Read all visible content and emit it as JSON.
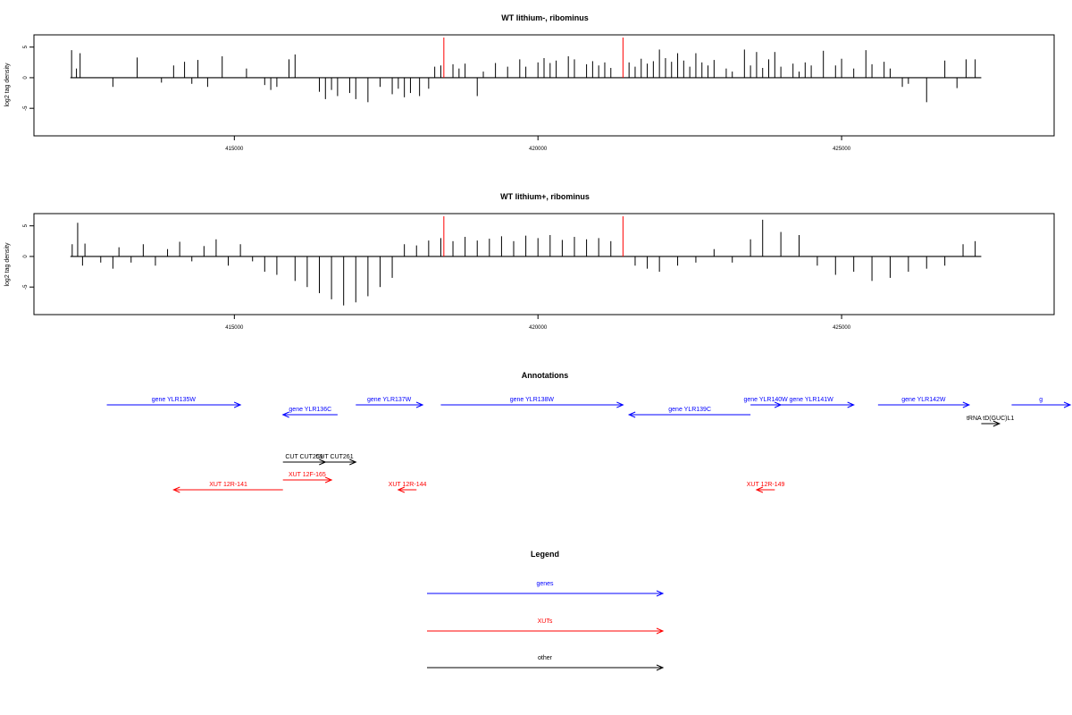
{
  "panels": [
    {
      "title": "WT lithium-, ribominus",
      "ylabel": "log2 tag density"
    },
    {
      "title": "WT lithium+, ribominus",
      "ylabel": "log2 tag density"
    }
  ],
  "annotations_title": "Annotations",
  "legend": {
    "title": "Legend",
    "items": [
      {
        "label": "genes",
        "color": "#0000ff"
      },
      {
        "label": "XUTs",
        "color": "#ff0000"
      },
      {
        "label": "other",
        "color": "#000000"
      }
    ]
  },
  "colors": {
    "gene": "#0000ff",
    "xut": "#ff0000",
    "other": "#000000",
    "marker": "#ff0000",
    "bars": "#000000"
  },
  "chart_data": [
    {
      "type": "bar",
      "title": "WT lithium-, ribominus",
      "xlabel": "",
      "ylabel": "log2 tag density",
      "xlim": [
        411700,
        428500
      ],
      "ylim": [
        -9.5,
        7
      ],
      "xticks": [
        415000,
        420000,
        425000
      ],
      "yticks": [
        -5,
        0,
        5
      ],
      "data_range": [
        412300,
        427300
      ],
      "markers": [
        418450,
        421400
      ],
      "series": [
        {
          "values": [
            [
              412320,
              4.5
            ],
            [
              412400,
              1.5
            ],
            [
              412460,
              4.0
            ],
            [
              413000,
              -1.5
            ],
            [
              413400,
              3.3
            ],
            [
              413800,
              -0.8
            ],
            [
              414000,
              2.0
            ],
            [
              414180,
              2.6
            ],
            [
              414300,
              -1.0
            ],
            [
              414400,
              2.9
            ],
            [
              414560,
              -1.5
            ],
            [
              414800,
              3.5
            ],
            [
              415200,
              1.5
            ],
            [
              415500,
              -1.2
            ],
            [
              415600,
              -2.0
            ],
            [
              415700,
              -1.5
            ],
            [
              416000,
              3.8
            ],
            [
              415900,
              3.0
            ],
            [
              416400,
              -2.3
            ],
            [
              416500,
              -3.5
            ],
            [
              416600,
              -2.0
            ],
            [
              416700,
              -3.0
            ],
            [
              416900,
              -2.5
            ],
            [
              417000,
              -3.5
            ],
            [
              417200,
              -4.0
            ],
            [
              417400,
              -1.5
            ],
            [
              417600,
              -2.7
            ],
            [
              417700,
              -1.8
            ],
            [
              417800,
              -3.2
            ],
            [
              417900,
              -2.5
            ],
            [
              418050,
              -3.0
            ],
            [
              418200,
              -1.8
            ],
            [
              418300,
              1.8
            ],
            [
              418400,
              2.0
            ],
            [
              418600,
              2.2
            ],
            [
              418700,
              1.5
            ],
            [
              418800,
              2.3
            ],
            [
              419000,
              -3.0
            ],
            [
              419100,
              1.0
            ],
            [
              419300,
              2.4
            ],
            [
              419500,
              1.8
            ],
            [
              419700,
              3.0
            ],
            [
              419800,
              1.8
            ],
            [
              420000,
              2.5
            ],
            [
              420100,
              3.2
            ],
            [
              420200,
              2.4
            ],
            [
              420300,
              2.8
            ],
            [
              420500,
              3.5
            ],
            [
              420600,
              3.0
            ],
            [
              420800,
              2.2
            ],
            [
              420900,
              2.7
            ],
            [
              421000,
              2.0
            ],
            [
              421100,
              2.5
            ],
            [
              421200,
              1.6
            ],
            [
              421500,
              2.5
            ],
            [
              421600,
              1.8
            ],
            [
              421700,
              3.1
            ],
            [
              421800,
              2.3
            ],
            [
              421900,
              2.7
            ],
            [
              422000,
              4.6
            ],
            [
              422100,
              3.2
            ],
            [
              422200,
              2.6
            ],
            [
              422300,
              4.0
            ],
            [
              422400,
              2.8
            ],
            [
              422500,
              1.8
            ],
            [
              422600,
              4.0
            ],
            [
              422700,
              2.5
            ],
            [
              422800,
              2.0
            ],
            [
              422900,
              2.9
            ],
            [
              423100,
              1.5
            ],
            [
              423200,
              1.0
            ],
            [
              423400,
              4.6
            ],
            [
              423500,
              2.0
            ],
            [
              423600,
              4.2
            ],
            [
              423700,
              1.6
            ],
            [
              423800,
              3.0
            ],
            [
              423900,
              4.2
            ],
            [
              424000,
              1.8
            ],
            [
              424200,
              2.3
            ],
            [
              424300,
              1.0
            ],
            [
              424400,
              2.5
            ],
            [
              424500,
              2.0
            ],
            [
              424700,
              4.4
            ],
            [
              424900,
              2.0
            ],
            [
              425000,
              3.1
            ],
            [
              425200,
              1.5
            ],
            [
              425400,
              4.5
            ],
            [
              425500,
              2.2
            ],
            [
              425700,
              2.6
            ],
            [
              425800,
              1.5
            ],
            [
              426000,
              -1.5
            ],
            [
              426100,
              -1.0
            ],
            [
              426400,
              -4.0
            ],
            [
              426700,
              2.8
            ],
            [
              426900,
              -1.7
            ],
            [
              427050,
              3.0
            ],
            [
              427200,
              3.0
            ]
          ]
        }
      ]
    },
    {
      "type": "bar",
      "title": "WT lithium+, ribominus",
      "xlabel": "",
      "ylabel": "log2 tag density",
      "xlim": [
        411700,
        428500
      ],
      "ylim": [
        -9.5,
        7
      ],
      "xticks": [
        415000,
        420000,
        425000
      ],
      "yticks": [
        -5,
        0,
        5
      ],
      "data_range": [
        412300,
        427300
      ],
      "markers": [
        418450,
        421400
      ],
      "series": [
        {
          "values": [
            [
              412330,
              2.0
            ],
            [
              412420,
              5.5
            ],
            [
              412500,
              -1.5
            ],
            [
              412540,
              2.1
            ],
            [
              412800,
              -1.0
            ],
            [
              413000,
              -2.0
            ],
            [
              413100,
              1.5
            ],
            [
              413300,
              -1.0
            ],
            [
              413500,
              2.0
            ],
            [
              413700,
              -1.5
            ],
            [
              413900,
              1.2
            ],
            [
              414100,
              2.4
            ],
            [
              414300,
              -0.8
            ],
            [
              414500,
              1.7
            ],
            [
              414700,
              2.8
            ],
            [
              414900,
              -1.5
            ],
            [
              415100,
              2.0
            ],
            [
              415300,
              -0.8
            ],
            [
              415500,
              -2.5
            ],
            [
              415700,
              -3.0
            ],
            [
              416000,
              -4.0
            ],
            [
              416200,
              -5.0
            ],
            [
              416400,
              -6.0
            ],
            [
              416600,
              -7.0
            ],
            [
              416800,
              -8.0
            ],
            [
              417000,
              -7.5
            ],
            [
              417200,
              -6.5
            ],
            [
              417400,
              -5.0
            ],
            [
              417600,
              -3.5
            ],
            [
              417800,
              2.0
            ],
            [
              418000,
              1.8
            ],
            [
              418200,
              2.6
            ],
            [
              418400,
              3.0
            ],
            [
              418600,
              2.5
            ],
            [
              418800,
              3.2
            ],
            [
              419000,
              2.6
            ],
            [
              419200,
              2.9
            ],
            [
              419400,
              3.3
            ],
            [
              419600,
              2.5
            ],
            [
              419800,
              3.4
            ],
            [
              420000,
              3.0
            ],
            [
              420200,
              3.5
            ],
            [
              420400,
              2.7
            ],
            [
              420600,
              3.2
            ],
            [
              420800,
              2.8
            ],
            [
              421000,
              3.0
            ],
            [
              421200,
              2.5
            ],
            [
              421600,
              -1.5
            ],
            [
              421800,
              -2.0
            ],
            [
              422000,
              -2.5
            ],
            [
              422300,
              -1.5
            ],
            [
              422600,
              -1.0
            ],
            [
              422900,
              1.2
            ],
            [
              423200,
              -1.0
            ],
            [
              423500,
              2.8
            ],
            [
              423700,
              6.0
            ],
            [
              424000,
              4.0
            ],
            [
              424300,
              3.5
            ],
            [
              424600,
              -1.5
            ],
            [
              424900,
              -3.0
            ],
            [
              425200,
              -2.5
            ],
            [
              425500,
              -4.0
            ],
            [
              425800,
              -3.5
            ],
            [
              426100,
              -2.5
            ],
            [
              426400,
              -2.0
            ],
            [
              426700,
              -1.5
            ],
            [
              427000,
              2.0
            ],
            [
              427200,
              2.5
            ]
          ]
        }
      ]
    }
  ],
  "annotations": [
    {
      "label": "gene YLR135W",
      "kind": "gene",
      "start": 412900,
      "end": 415100,
      "dir": "right",
      "row": 1
    },
    {
      "label": "gene YLR136C",
      "kind": "gene",
      "start": 415800,
      "end": 416700,
      "dir": "left",
      "row": 2
    },
    {
      "label": "gene YLR137W",
      "kind": "gene",
      "start": 417000,
      "end": 418100,
      "dir": "right",
      "row": 1
    },
    {
      "label": "gene YLR138W",
      "kind": "gene",
      "start": 418400,
      "end": 421400,
      "dir": "right",
      "row": 1
    },
    {
      "label": "gene YLR139C",
      "kind": "gene",
      "start": 421500,
      "end": 423500,
      "dir": "left",
      "row": 2
    },
    {
      "label": "gene YLR140W",
      "kind": "gene",
      "start": 423500,
      "end": 424000,
      "dir": "right",
      "row": 1
    },
    {
      "label": "gene YLR141W",
      "kind": "gene",
      "start": 423800,
      "end": 425200,
      "dir": "right",
      "row": 1
    },
    {
      "label": "gene YLR142W",
      "kind": "gene",
      "start": 425600,
      "end": 427100,
      "dir": "right",
      "row": 1
    },
    {
      "label": "g",
      "kind": "gene",
      "start": 427800,
      "end": 429000,
      "dir": "right",
      "row": 1
    },
    {
      "label": "tRNA tD(GUC)L1",
      "kind": "other",
      "start": 427300,
      "end": 427600,
      "dir": "right",
      "row": 3
    },
    {
      "label": "CUT CUT259",
      "kind": "other",
      "start": 415800,
      "end": 416500,
      "dir": "right",
      "row": 4
    },
    {
      "label": "CUT CUT261",
      "kind": "other",
      "start": 416300,
      "end": 417000,
      "dir": "right",
      "row": 5
    },
    {
      "label": "XUT 12R-141",
      "kind": "xut",
      "start": 414000,
      "end": 415800,
      "dir": "left",
      "row": 6
    },
    {
      "label": "XUT 12F-165",
      "kind": "xut",
      "start": 415800,
      "end": 416600,
      "dir": "right",
      "row": 7
    },
    {
      "label": "XUT 12R-144",
      "kind": "xut",
      "start": 417700,
      "end": 418000,
      "dir": "left",
      "row": 6
    },
    {
      "label": "XUT 12R-149",
      "kind": "xut",
      "start": 423600,
      "end": 423900,
      "dir": "left",
      "row": 6
    }
  ]
}
